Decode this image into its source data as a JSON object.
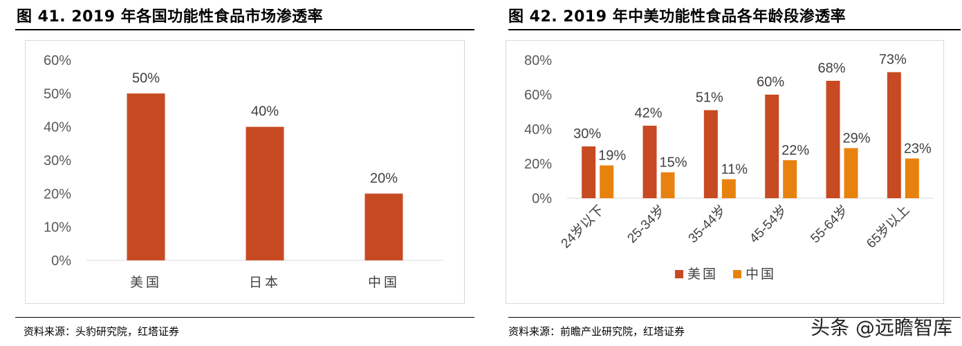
{
  "left": {
    "title": "图 41. 2019 年各国功能性食品市场渗透率",
    "source": "资料来源：头豹研究院，红塔证券"
  },
  "right": {
    "title": "图 42. 2019 年中美功能性食品各年龄段渗透率",
    "source": "资料来源：前瞻产业研究院，红塔证券"
  },
  "watermark": "头条 @远瞻智库",
  "chart_data": [
    {
      "type": "bar",
      "title": "",
      "categories": [
        "美国",
        "日本",
        "中国"
      ],
      "values": [
        50,
        40,
        20
      ],
      "data_labels": [
        "50%",
        "40%",
        "20%"
      ],
      "ylim": [
        0,
        60
      ],
      "yticks": [
        "0%",
        "10%",
        "20%",
        "30%",
        "40%",
        "50%",
        "60%"
      ],
      "color": "#c84a22",
      "grid": false
    },
    {
      "type": "bar",
      "title": "",
      "categories": [
        "24岁以下",
        "25-34岁",
        "35-44岁",
        "45-54岁",
        "55-64岁",
        "65岁以上"
      ],
      "series": [
        {
          "name": "美国",
          "values": [
            30,
            42,
            51,
            60,
            68,
            73
          ],
          "labels": [
            "30%",
            "42%",
            "51%",
            "60%",
            "68%",
            "73%"
          ],
          "color": "#c84a22"
        },
        {
          "name": "中国",
          "values": [
            19,
            15,
            11,
            22,
            29,
            23
          ],
          "labels": [
            "19%",
            "15%",
            "11%",
            "22%",
            "29%",
            "23%"
          ],
          "color": "#e8820e"
        }
      ],
      "ylim": [
        0,
        80
      ],
      "yticks": [
        "0%",
        "20%",
        "40%",
        "60%",
        "80%"
      ],
      "legend": "bottom",
      "grid": false
    }
  ]
}
